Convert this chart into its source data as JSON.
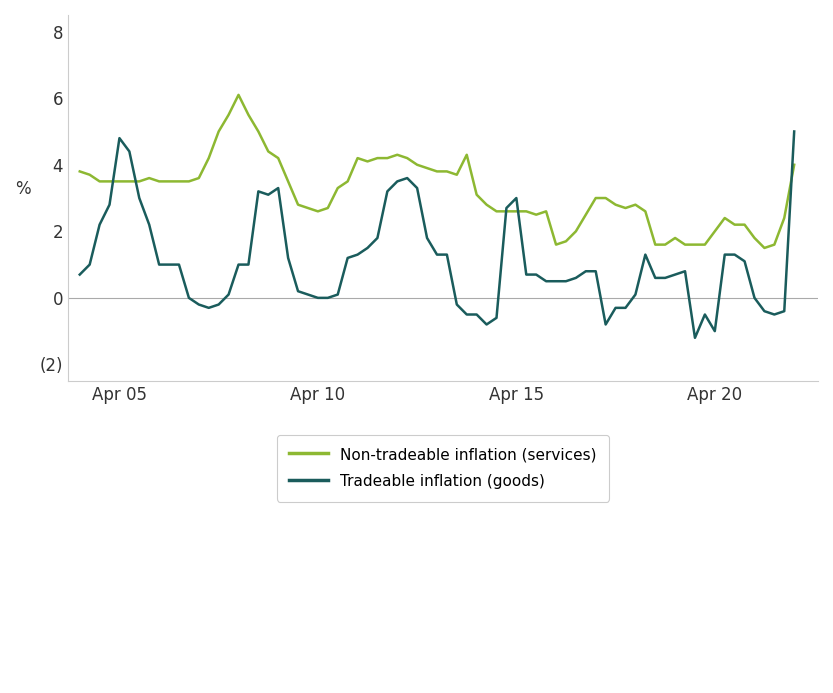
{
  "ylabel": "%",
  "ylim": [
    -2.5,
    8.5
  ],
  "yticks": [
    -2,
    0,
    2,
    4,
    6,
    8
  ],
  "yticklabels": [
    "(2)",
    "0",
    "2",
    "4",
    "6",
    "8"
  ],
  "xtick_positions": [
    1,
    6,
    11,
    16
  ],
  "xtick_labels": [
    "Apr 05",
    "Apr 10",
    "Apr 15",
    "Apr 20"
  ],
  "color_services": "#8db832",
  "color_goods": "#1a5c5c",
  "background_color": "#ffffff",
  "legend_labels": [
    "Non-tradeable inflation (services)",
    "Tradeable inflation (goods)"
  ],
  "x_services": [
    0.0,
    0.25,
    0.5,
    0.75,
    1.0,
    1.25,
    1.5,
    1.75,
    2.0,
    2.25,
    2.5,
    2.75,
    3.0,
    3.25,
    3.5,
    3.75,
    4.0,
    4.25,
    4.5,
    4.75,
    5.0,
    5.25,
    5.5,
    5.75,
    6.0,
    6.25,
    6.5,
    6.75,
    7.0,
    7.25,
    7.5,
    7.75,
    8.0,
    8.25,
    8.5,
    8.75,
    9.0,
    9.25,
    9.5,
    9.75,
    10.0,
    10.25,
    10.5,
    10.75,
    11.0,
    11.25,
    11.5,
    11.75,
    12.0,
    12.25,
    12.5,
    12.75,
    13.0,
    13.25,
    13.5,
    13.75,
    14.0,
    14.25,
    14.5,
    14.75,
    15.0,
    15.25,
    15.5,
    15.75,
    16.0,
    16.25,
    16.5,
    16.75,
    17.0,
    17.25,
    17.5,
    17.75,
    18.0
  ],
  "y_services": [
    3.8,
    3.7,
    3.5,
    3.5,
    3.5,
    3.5,
    3.5,
    3.6,
    3.5,
    3.5,
    3.5,
    3.5,
    3.6,
    4.2,
    5.0,
    5.5,
    6.1,
    5.5,
    5.0,
    4.4,
    4.2,
    3.5,
    2.8,
    2.7,
    2.6,
    2.7,
    3.3,
    3.5,
    4.2,
    4.1,
    4.2,
    4.2,
    4.3,
    4.2,
    4.0,
    3.9,
    3.8,
    3.8,
    3.7,
    4.3,
    3.1,
    2.8,
    2.6,
    2.6,
    2.6,
    2.6,
    2.5,
    2.6,
    1.6,
    1.7,
    2.0,
    2.5,
    3.0,
    3.0,
    2.8,
    2.7,
    2.8,
    2.6,
    1.6,
    1.6,
    1.8,
    1.6,
    1.6,
    1.6,
    2.0,
    2.4,
    2.2,
    2.2,
    1.8,
    1.5,
    1.6,
    2.4,
    4.0
  ],
  "x_goods": [
    0.0,
    0.25,
    0.5,
    0.75,
    1.0,
    1.25,
    1.5,
    1.75,
    2.0,
    2.25,
    2.5,
    2.75,
    3.0,
    3.25,
    3.5,
    3.75,
    4.0,
    4.25,
    4.5,
    4.75,
    5.0,
    5.25,
    5.5,
    5.75,
    6.0,
    6.25,
    6.5,
    6.75,
    7.0,
    7.25,
    7.5,
    7.75,
    8.0,
    8.25,
    8.5,
    8.75,
    9.0,
    9.25,
    9.5,
    9.75,
    10.0,
    10.25,
    10.5,
    10.75,
    11.0,
    11.25,
    11.5,
    11.75,
    12.0,
    12.25,
    12.5,
    12.75,
    13.0,
    13.25,
    13.5,
    13.75,
    14.0,
    14.25,
    14.5,
    14.75,
    15.0,
    15.25,
    15.5,
    15.75,
    16.0,
    16.25,
    16.5,
    16.75,
    17.0,
    17.25,
    17.5,
    17.75,
    18.0
  ],
  "y_goods": [
    0.7,
    1.0,
    2.2,
    2.8,
    4.8,
    4.4,
    3.0,
    2.2,
    1.0,
    1.0,
    1.0,
    0.0,
    -0.2,
    -0.3,
    -0.2,
    0.1,
    1.0,
    1.0,
    3.2,
    3.1,
    3.3,
    1.2,
    0.2,
    0.1,
    0.0,
    0.0,
    0.1,
    1.2,
    1.3,
    1.5,
    1.8,
    3.2,
    3.5,
    3.6,
    3.3,
    1.8,
    1.3,
    1.3,
    -0.2,
    -0.5,
    -0.5,
    -0.8,
    -0.6,
    2.7,
    3.0,
    0.7,
    0.7,
    0.5,
    0.5,
    0.5,
    0.6,
    0.8,
    0.8,
    -0.8,
    -0.3,
    -0.3,
    0.1,
    1.3,
    0.6,
    0.6,
    0.7,
    0.8,
    -1.2,
    -0.5,
    -1.0,
    1.3,
    1.3,
    1.1,
    0.0,
    -0.4,
    -0.5,
    -0.4,
    5.0
  ]
}
